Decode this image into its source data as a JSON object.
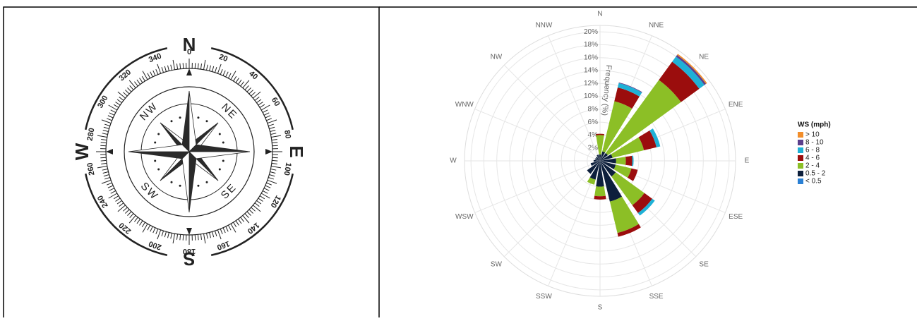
{
  "compass": {
    "cardinals": [
      "N",
      "E",
      "S",
      "W"
    ],
    "intercardinals": [
      "NE",
      "SE",
      "SW",
      "NW"
    ],
    "degrees": [
      0,
      20,
      40,
      60,
      80,
      100,
      120,
      140,
      160,
      180,
      200,
      220,
      240,
      260,
      280,
      300,
      320,
      340
    ]
  },
  "chart_data": {
    "type": "windrose",
    "categories": [
      "N",
      "NNE",
      "NE",
      "ENE",
      "E",
      "ESE",
      "SE",
      "SSE",
      "S",
      "SSW",
      "SW",
      "WSW",
      "W",
      "WNW",
      "NW",
      "NNW"
    ],
    "axis_label": "Frequency (%)",
    "legend_title": "WS (mph)",
    "ylim": [
      0,
      21
    ],
    "yticks": [
      {
        "value": 2,
        "label": "2%"
      },
      {
        "value": 4,
        "label": "4%"
      },
      {
        "value": 6,
        "label": "6%"
      },
      {
        "value": 8,
        "label": "8%"
      },
      {
        "value": 10,
        "label": "10%"
      },
      {
        "value": 12,
        "label": "12%"
      },
      {
        "value": 14,
        "label": "14%"
      },
      {
        "value": 16,
        "label": "16%"
      },
      {
        "value": 18,
        "label": "18%"
      },
      {
        "value": 20,
        "label": "20%"
      }
    ],
    "grid": true,
    "series": [
      {
        "name": "> 10",
        "color": "#f28e2b",
        "values": [
          0,
          0,
          0.2,
          0,
          0,
          0,
          0,
          0,
          0,
          0,
          0,
          0,
          0,
          0,
          0,
          0
        ]
      },
      {
        "name": "8 - 10",
        "color": "#5b3f8c",
        "values": [
          0,
          0.1,
          0.3,
          0,
          0,
          0,
          0,
          0,
          0,
          0,
          0,
          0,
          0,
          0,
          0,
          0
        ]
      },
      {
        "name": "6 - 8",
        "color": "#1fb1d6",
        "values": [
          0,
          0.7,
          1,
          0.6,
          0.2,
          0,
          0.5,
          0,
          0,
          0,
          0,
          0,
          0,
          0,
          0,
          0
        ]
      },
      {
        "name": "4 - 6",
        "color": "#9b0d0d",
        "values": [
          0.2,
          2.2,
          3.5,
          2,
          1,
          1,
          1.5,
          0.6,
          0.5,
          0,
          0,
          0,
          0,
          0,
          0,
          0
        ]
      },
      {
        "name": "2 - 4",
        "color": "#8cbf26",
        "values": [
          3,
          8,
          14,
          5,
          1.5,
          2.5,
          5.5,
          5,
          1.5,
          0.8,
          0,
          0,
          0,
          0,
          0,
          0
        ]
      },
      {
        "name": "0.5 - 2",
        "color": "#0d1f3c",
        "values": [
          1,
          1.5,
          1.5,
          2,
          2.5,
          2.5,
          3,
          6.5,
          4,
          3,
          2.5,
          1.5,
          1,
          0.8,
          0.8,
          1
        ]
      },
      {
        "name": "< 0.5",
        "color": "#2a80d4",
        "values": [
          0,
          0,
          0,
          0,
          0,
          0,
          0,
          0,
          0,
          0,
          0,
          0,
          0,
          0,
          0,
          0
        ]
      }
    ]
  }
}
